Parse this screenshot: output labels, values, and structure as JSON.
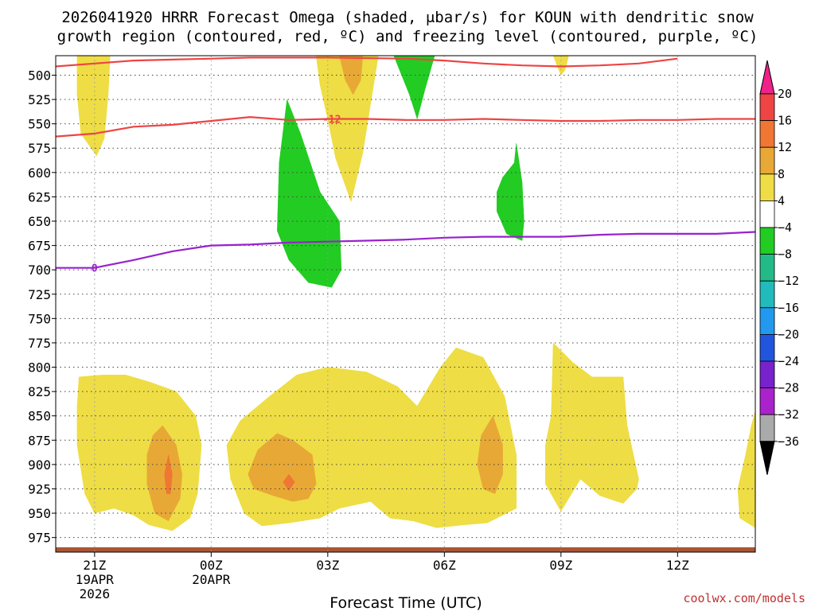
{
  "chart_data": {
    "type": "time-height cross-section (filled contours)",
    "title_line1": "2026041920 HRRR Forecast Omega (shaded, μbar/s) for KOUN with dendritic snow",
    "title_line2": "growth region (contoured, red, ºC) and freezing level (contoured, purple, ºC)",
    "xlabel": "Forecast Time (UTC)",
    "credit": "coolwx.com/models",
    "x_ticks": [
      {
        "hour": 1,
        "label": "21Z",
        "sub": [
          "19APR",
          "2026"
        ]
      },
      {
        "hour": 4,
        "label": "00Z",
        "sub": [
          "20APR"
        ]
      },
      {
        "hour": 7,
        "label": "03Z",
        "sub": []
      },
      {
        "hour": 10,
        "label": "06Z",
        "sub": []
      },
      {
        "hour": 13,
        "label": "09Z",
        "sub": []
      },
      {
        "hour": 16,
        "label": "12Z",
        "sub": []
      }
    ],
    "x_range_hours": [
      0,
      18
    ],
    "y_ticks_mb": [
      500,
      525,
      550,
      575,
      600,
      625,
      650,
      675,
      700,
      725,
      750,
      775,
      800,
      825,
      850,
      875,
      900,
      925,
      950,
      975
    ],
    "y_range_mb": [
      480,
      990
    ],
    "colorbar": {
      "levels": [
        20,
        16,
        12,
        8,
        4,
        -4,
        -8,
        -12,
        -16,
        -20,
        -24,
        -28,
        -32,
        -36
      ],
      "colors_top_to_bottom": [
        "#ee4444",
        "#ef7733",
        "#e8a835",
        "#eedd44",
        "#ffffff",
        "#22cc22",
        "#22bb88",
        "#22bbbb",
        "#2299ee",
        "#2255dd",
        "#7722cc",
        "#aa22cc",
        "#aaaaaa"
      ],
      "extend_top_color": "#ee2288",
      "extend_bottom_color": "#000000"
    },
    "contours": [
      {
        "name": "dgz -12C (upper)",
        "color": "#ee4444",
        "label": "",
        "points": [
          [
            0,
            491
          ],
          [
            1,
            488
          ],
          [
            2,
            485
          ],
          [
            3,
            484
          ],
          [
            4,
            483
          ],
          [
            5,
            482
          ],
          [
            7,
            482
          ],
          [
            9,
            483
          ],
          [
            10,
            485
          ],
          [
            11,
            488
          ],
          [
            12,
            490
          ],
          [
            13,
            491
          ],
          [
            14,
            490
          ],
          [
            15,
            488
          ],
          [
            16,
            483
          ]
        ]
      },
      {
        "name": "dgz -12C",
        "color": "#ee4444",
        "label": "-12",
        "points": [
          [
            0,
            563
          ],
          [
            1,
            560
          ],
          [
            2,
            553
          ],
          [
            3,
            551
          ],
          [
            4,
            547
          ],
          [
            5,
            543
          ],
          [
            6,
            546
          ],
          [
            7,
            545
          ],
          [
            8,
            545
          ],
          [
            9,
            546
          ],
          [
            10,
            546
          ],
          [
            11,
            545
          ],
          [
            12,
            546
          ],
          [
            13,
            547
          ],
          [
            14,
            547
          ],
          [
            15,
            546
          ],
          [
            16,
            546
          ],
          [
            17,
            545
          ],
          [
            18,
            545
          ]
        ],
        "label_at": [
          7.1,
          545
        ]
      },
      {
        "name": "freezing level 0C",
        "color": "#9922cc",
        "label": "0",
        "points": [
          [
            0,
            698
          ],
          [
            1,
            698
          ],
          [
            2,
            690
          ],
          [
            3,
            681
          ],
          [
            4,
            675
          ],
          [
            5,
            674
          ],
          [
            6,
            672
          ],
          [
            7,
            671
          ],
          [
            8,
            670
          ],
          [
            9,
            669
          ],
          [
            10,
            667
          ],
          [
            11,
            666
          ],
          [
            12,
            666
          ],
          [
            13,
            666
          ],
          [
            14,
            664
          ],
          [
            15,
            663
          ],
          [
            16,
            663
          ],
          [
            17,
            663
          ],
          [
            18,
            661
          ]
        ],
        "label_at": [
          1.0,
          698
        ]
      }
    ],
    "shaded_regions": [
      {
        "value_band": "4 to 8",
        "color": "#eedd44",
        "name": "rise-21z-upper",
        "points": [
          [
            0.55,
            480
          ],
          [
            1.4,
            480
          ],
          [
            1.35,
            520
          ],
          [
            1.25,
            565
          ],
          [
            1.05,
            583
          ],
          [
            0.65,
            560
          ],
          [
            0.55,
            520
          ]
        ]
      },
      {
        "value_band": "4 to 8",
        "color": "#eedd44",
        "name": "rise-03z-upper",
        "points": [
          [
            6.7,
            480
          ],
          [
            8.3,
            480
          ],
          [
            8.1,
            530
          ],
          [
            7.9,
            580
          ],
          [
            7.6,
            630
          ],
          [
            7.2,
            585
          ],
          [
            7.0,
            545
          ],
          [
            6.8,
            510
          ]
        ]
      },
      {
        "value_band": "8 to 12",
        "color": "#e8a835",
        "name": "rise-03z-core",
        "points": [
          [
            7.3,
            480
          ],
          [
            7.9,
            480
          ],
          [
            7.85,
            505
          ],
          [
            7.65,
            520
          ],
          [
            7.45,
            505
          ]
        ]
      },
      {
        "value_band": "4 to 8",
        "color": "#eedd44",
        "name": "rise-09z-upper",
        "points": [
          [
            12.8,
            480
          ],
          [
            13.2,
            480
          ],
          [
            13.1,
            495
          ],
          [
            13.0,
            500
          ]
        ]
      },
      {
        "value_band": "-4 to -8",
        "color": "#22cc22",
        "name": "sink-05z",
        "points": [
          [
            8.7,
            480
          ],
          [
            9.75,
            480
          ],
          [
            9.5,
            515
          ],
          [
            9.3,
            545
          ],
          [
            9.1,
            520
          ]
        ]
      },
      {
        "value_band": "-4 to -8",
        "color": "#22cc22",
        "name": "sink-02z",
        "points": [
          [
            5.95,
            525
          ],
          [
            6.3,
            560
          ],
          [
            6.8,
            620
          ],
          [
            7.3,
            650
          ],
          [
            7.35,
            700
          ],
          [
            7.1,
            718
          ],
          [
            6.5,
            713
          ],
          [
            6.0,
            690
          ],
          [
            5.7,
            660
          ],
          [
            5.75,
            590
          ]
        ]
      },
      {
        "value_band": "-4 to -8",
        "color": "#22cc22",
        "name": "sink-0730z",
        "points": [
          [
            11.85,
            570
          ],
          [
            12.0,
            610
          ],
          [
            12.05,
            650
          ],
          [
            12.0,
            670
          ],
          [
            11.6,
            663
          ],
          [
            11.35,
            640
          ],
          [
            11.35,
            620
          ],
          [
            11.5,
            605
          ],
          [
            11.8,
            590
          ]
        ]
      },
      {
        "value_band": "4 to 8",
        "color": "#eedd44",
        "name": "rise-22z-low",
        "points": [
          [
            0.6,
            810
          ],
          [
            1.2,
            808
          ],
          [
            1.8,
            808
          ],
          [
            2.4,
            815
          ],
          [
            3.1,
            825
          ],
          [
            3.6,
            850
          ],
          [
            3.75,
            880
          ],
          [
            3.65,
            930
          ],
          [
            3.45,
            955
          ],
          [
            3.0,
            968
          ],
          [
            2.4,
            962
          ],
          [
            2.0,
            952
          ],
          [
            1.5,
            945
          ],
          [
            1.0,
            950
          ],
          [
            0.75,
            930
          ],
          [
            0.55,
            880
          ],
          [
            0.55,
            840
          ]
        ]
      },
      {
        "value_band": "8 to 12",
        "color": "#e8a835",
        "name": "rise-22z-core",
        "points": [
          [
            2.75,
            860
          ],
          [
            3.1,
            880
          ],
          [
            3.25,
            910
          ],
          [
            3.2,
            935
          ],
          [
            2.9,
            958
          ],
          [
            2.55,
            950
          ],
          [
            2.35,
            920
          ],
          [
            2.35,
            890
          ],
          [
            2.5,
            870
          ]
        ]
      },
      {
        "value_band": "12 to 16",
        "color": "#ef7733",
        "name": "rise-22z-peak",
        "points": [
          [
            2.9,
            890
          ],
          [
            3.0,
            910
          ],
          [
            2.95,
            930
          ],
          [
            2.85,
            930
          ],
          [
            2.8,
            910
          ]
        ]
      },
      {
        "value_band": "4 to 8",
        "color": "#eedd44",
        "name": "rise-02z-low",
        "points": [
          [
            5.5,
            830
          ],
          [
            6.2,
            808
          ],
          [
            7.0,
            800
          ],
          [
            8.0,
            805
          ],
          [
            8.8,
            820
          ],
          [
            9.3,
            840
          ],
          [
            9.9,
            800
          ],
          [
            10.3,
            780
          ],
          [
            11.0,
            790
          ],
          [
            11.55,
            830
          ],
          [
            11.85,
            890
          ],
          [
            11.85,
            945
          ],
          [
            11.6,
            950
          ],
          [
            11.1,
            960
          ],
          [
            10.5,
            962
          ],
          [
            9.8,
            965
          ],
          [
            9.2,
            958
          ],
          [
            8.6,
            955
          ],
          [
            8.1,
            938
          ],
          [
            7.3,
            945
          ],
          [
            6.8,
            955
          ],
          [
            6.0,
            960
          ],
          [
            5.3,
            963
          ],
          [
            4.85,
            950
          ],
          [
            4.5,
            915
          ],
          [
            4.4,
            880
          ],
          [
            4.75,
            855
          ],
          [
            5.2,
            840
          ]
        ]
      },
      {
        "value_band": "8 to 12",
        "color": "#e8a835",
        "name": "rise-02z-core",
        "points": [
          [
            5.7,
            868
          ],
          [
            6.1,
            875
          ],
          [
            6.6,
            890
          ],
          [
            6.7,
            920
          ],
          [
            6.5,
            935
          ],
          [
            6.1,
            938
          ],
          [
            5.6,
            932
          ],
          [
            5.1,
            925
          ],
          [
            4.95,
            910
          ],
          [
            5.2,
            885
          ]
        ]
      },
      {
        "value_band": "12 to 16",
        "color": "#ef7733",
        "name": "rise-02z-peak",
        "points": [
          [
            6.0,
            910
          ],
          [
            6.15,
            918
          ],
          [
            6.0,
            927
          ],
          [
            5.85,
            918
          ]
        ]
      },
      {
        "value_band": "8 to 12",
        "color": "#e8a835",
        "name": "rise-07z-core",
        "points": [
          [
            11.25,
            850
          ],
          [
            11.5,
            880
          ],
          [
            11.5,
            910
          ],
          [
            11.3,
            930
          ],
          [
            11.0,
            925
          ],
          [
            10.85,
            900
          ],
          [
            10.95,
            870
          ]
        ]
      },
      {
        "value_band": "4 to 8",
        "color": "#eedd44",
        "name": "rise-09z-low",
        "points": [
          [
            12.8,
            775
          ],
          [
            13.3,
            795
          ],
          [
            13.8,
            810
          ],
          [
            14.6,
            810
          ],
          [
            14.7,
            860
          ],
          [
            15.0,
            915
          ],
          [
            14.95,
            925
          ],
          [
            14.6,
            940
          ],
          [
            14.0,
            932
          ],
          [
            13.5,
            915
          ],
          [
            13.0,
            948
          ],
          [
            12.6,
            920
          ],
          [
            12.6,
            880
          ],
          [
            12.75,
            850
          ]
        ]
      },
      {
        "value_band": "4 to 8",
        "color": "#eedd44",
        "name": "rise-14z-low",
        "points": [
          [
            18.0,
            845
          ],
          [
            18.0,
            965
          ],
          [
            17.6,
            955
          ],
          [
            17.55,
            925
          ],
          [
            17.75,
            890
          ],
          [
            17.9,
            860
          ]
        ]
      }
    ],
    "terrain": {
      "color": "#aa5533",
      "top_mb": 985
    }
  }
}
